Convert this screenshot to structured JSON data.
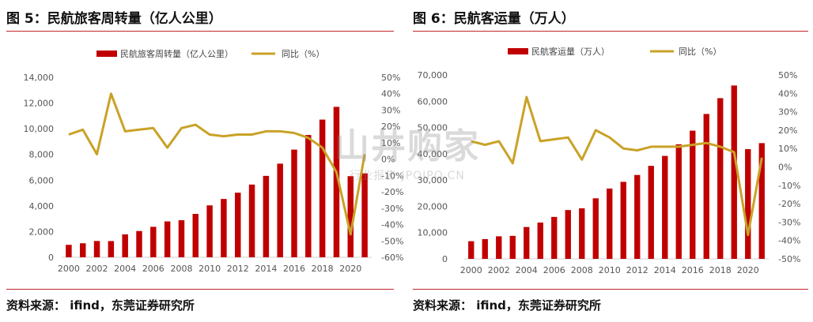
{
  "figures": [
    {
      "title": "图 5：民航旅客周转量（亿人公里）",
      "source": "资料来源：  ifind，东莞证券研究所"
    },
    {
      "title": "图 6：民航客运量（万人）",
      "source": "资料来源：  ifind，东莞证券研究所"
    }
  ],
  "watermark": {
    "main": "山井购家",
    "sub": "行业报告 JPOIPO.CN"
  },
  "colors": {
    "bar": "#c00000",
    "line": "#c9a227",
    "rule": "#c0262d"
  },
  "chart_data": [
    {
      "type": "bar",
      "x": [
        "2000",
        "2001",
        "2002",
        "2003",
        "2004",
        "2005",
        "2006",
        "2007",
        "2008",
        "2009",
        "2010",
        "2011",
        "2012",
        "2013",
        "2014",
        "2015",
        "2016",
        "2017",
        "2018",
        "2019",
        "2020",
        "2021"
      ],
      "x_tick_labels": [
        "2000",
        "2002",
        "2004",
        "2006",
        "2008",
        "2010",
        "2012",
        "2014",
        "2016",
        "2018",
        "2020"
      ],
      "series": [
        {
          "name": "民航旅客周转量（亿人公里）",
          "type": "bar",
          "axis": "left",
          "values": [
            970,
            1091,
            1269,
            1263,
            1782,
            2045,
            2370,
            2791,
            2883,
            3375,
            4039,
            4537,
            5026,
            5657,
            6334,
            7283,
            8378,
            9513,
            10712,
            11705,
            6311,
            6530
          ]
        },
        {
          "name": "同比（%）",
          "type": "line",
          "axis": "right",
          "values": [
            15,
            18,
            3,
            40,
            17,
            18,
            19,
            7,
            19,
            21,
            15,
            14,
            15,
            15,
            17,
            17,
            16,
            13,
            7,
            -8,
            -46,
            3
          ]
        }
      ],
      "y_left": {
        "ylim": [
          0,
          14000
        ],
        "ticks": [
          "0",
          "2,000",
          "4,000",
          "6,000",
          "8,000",
          "10,000",
          "12,000",
          "14,000"
        ]
      },
      "y_right": {
        "ylim": [
          -60,
          50
        ],
        "ticks": [
          "-60%",
          "-50%",
          "-40%",
          "-30%",
          "-20%",
          "-10%",
          "0%",
          "10%",
          "20%",
          "30%",
          "40%",
          "50%"
        ]
      },
      "legend_position": "top"
    },
    {
      "type": "bar",
      "x": [
        "2000",
        "2001",
        "2002",
        "2003",
        "2004",
        "2005",
        "2006",
        "2007",
        "2008",
        "2009",
        "2010",
        "2011",
        "2012",
        "2013",
        "2014",
        "2015",
        "2016",
        "2017",
        "2018",
        "2019",
        "2020",
        "2021"
      ],
      "x_tick_labels": [
        "2000",
        "2002",
        "2004",
        "2006",
        "2008",
        "2010",
        "2012",
        "2014",
        "2016",
        "2018",
        "2020"
      ],
      "series": [
        {
          "name": "民航客运量（万人）",
          "type": "bar",
          "axis": "left",
          "values": [
            6722,
            7524,
            8594,
            8759,
            12123,
            13827,
            15968,
            18576,
            19251,
            23052,
            26769,
            29317,
            31936,
            35397,
            39195,
            43618,
            48796,
            55156,
            61174,
            65993,
            41778,
            44056
          ]
        },
        {
          "name": "同比（%）",
          "type": "line",
          "axis": "right",
          "values": [
            14,
            12,
            14,
            2,
            38,
            14,
            15,
            16,
            4,
            20,
            16,
            10,
            9,
            11,
            11,
            11,
            12,
            13,
            11,
            8,
            -37,
            5
          ]
        }
      ],
      "y_left": {
        "ylim": [
          0,
          70000
        ],
        "ticks": [
          "0",
          "10,000",
          "20,000",
          "30,000",
          "40,000",
          "50,000",
          "60,000",
          "70,000"
        ]
      },
      "y_right": {
        "ylim": [
          -50,
          50
        ],
        "ticks": [
          "-50%",
          "-40%",
          "-30%",
          "-20%",
          "-10%",
          "0%",
          "10%",
          "20%",
          "30%",
          "40%",
          "50%"
        ]
      },
      "legend_position": "top"
    }
  ]
}
